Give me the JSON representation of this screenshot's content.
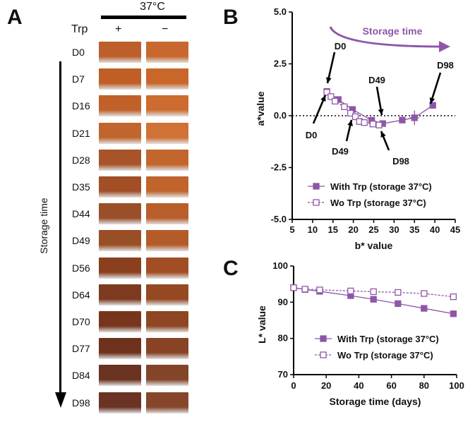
{
  "panel_a": {
    "letter": "A",
    "temperature": "37°C",
    "trp_label": "Trp",
    "col_plus": "+",
    "col_minus": "−",
    "storage_label": "Storage time",
    "rows": [
      {
        "day": "D0",
        "plus": "#bd5f2a",
        "minus": "#c8682e"
      },
      {
        "day": "D7",
        "plus": "#bf5f26",
        "minus": "#c9672a"
      },
      {
        "day": "D16",
        "plus": "#c0612a",
        "minus": "#cd6b30"
      },
      {
        "day": "D21",
        "plus": "#c1652e",
        "minus": "#d07136"
      },
      {
        "day": "D28",
        "plus": "#a7542a",
        "minus": "#c2662e"
      },
      {
        "day": "D35",
        "plus": "#a24f26",
        "minus": "#c0642c"
      },
      {
        "day": "D44",
        "plus": "#99502a",
        "minus": "#b85e2c"
      },
      {
        "day": "D49",
        "plus": "#9a4e26",
        "minus": "#b35c2a"
      },
      {
        "day": "D56",
        "plus": "#8a3f1e",
        "minus": "#a24e24"
      },
      {
        "day": "D64",
        "plus": "#7d3a1e",
        "minus": "#964822"
      },
      {
        "day": "D70",
        "plus": "#77361c",
        "minus": "#8d4522"
      },
      {
        "day": "D77",
        "plus": "#6e321c",
        "minus": "#874324"
      },
      {
        "day": "D84",
        "plus": "#6a3220",
        "minus": "#844428"
      },
      {
        "day": "D98",
        "plus": "#6a3324",
        "minus": "#85462c"
      }
    ]
  },
  "chart_data": [
    {
      "panel": "B",
      "type": "scatter",
      "xlabel": "b* value",
      "ylabel": "a*value",
      "xlim": [
        5,
        45
      ],
      "ylim": [
        -5.0,
        5.0
      ],
      "xticks": [
        "5",
        "10",
        "15",
        "20",
        "25",
        "30",
        "35",
        "40",
        "45"
      ],
      "yticks": [
        "5.0",
        "2.5",
        "0.0",
        "-2.5",
        "-5.0"
      ],
      "zero_line": "dotted",
      "legend_position": "bottom-center",
      "arrow_text": "Storage time",
      "series": [
        {
          "name": "With Trp (storage 37°C)",
          "marker": "filled-square",
          "line": "solid",
          "x": [
            13.5,
            16.3,
            19.8,
            24.5,
            27.2,
            32.0,
            35.0,
            39.5
          ],
          "y": [
            1.17,
            0.78,
            0.3,
            -0.22,
            -0.38,
            -0.21,
            -0.1,
            0.5
          ]
        },
        {
          "name": "Wo Trp (storage 37°C)",
          "marker": "open-square",
          "line": "dashed",
          "x": [
            13.5,
            14.5,
            15.5,
            17.8,
            19.3,
            20.5,
            21.5,
            22.7,
            24.8,
            26.3
          ],
          "y": [
            1.13,
            0.92,
            0.7,
            0.43,
            0.12,
            -0.05,
            -0.28,
            -0.33,
            -0.4,
            -0.45
          ]
        }
      ],
      "annotations": [
        "D0",
        "D0",
        "D49",
        "D49",
        "D98",
        "D98"
      ]
    },
    {
      "panel": "C",
      "type": "line",
      "xlabel": "Storage time (days)",
      "ylabel": "L* value",
      "xlim": [
        0,
        100
      ],
      "ylim": [
        70,
        100
      ],
      "xticks": [
        "0",
        "20",
        "40",
        "60",
        "80",
        "100"
      ],
      "yticks": [
        "100",
        "90",
        "80",
        "70"
      ],
      "legend_position": "bottom-center",
      "x": [
        0,
        7,
        16,
        35,
        49,
        64,
        80,
        98
      ],
      "series": [
        {
          "name": "With Trp (storage 37°C)",
          "marker": "filled-square",
          "line": "solid",
          "values": [
            94.0,
            93.5,
            93.0,
            91.8,
            90.8,
            89.6,
            88.3,
            86.8
          ]
        },
        {
          "name": "Wo Trp (storage 37°C)",
          "marker": "open-square",
          "line": "dashed",
          "values": [
            94.0,
            93.6,
            93.4,
            93.1,
            92.9,
            92.7,
            92.4,
            91.5
          ]
        }
      ]
    }
  ],
  "panel_b_letter": "B",
  "panel_c_letter": "C",
  "colors": {
    "series": "#8e56a8",
    "text": "#111111"
  }
}
